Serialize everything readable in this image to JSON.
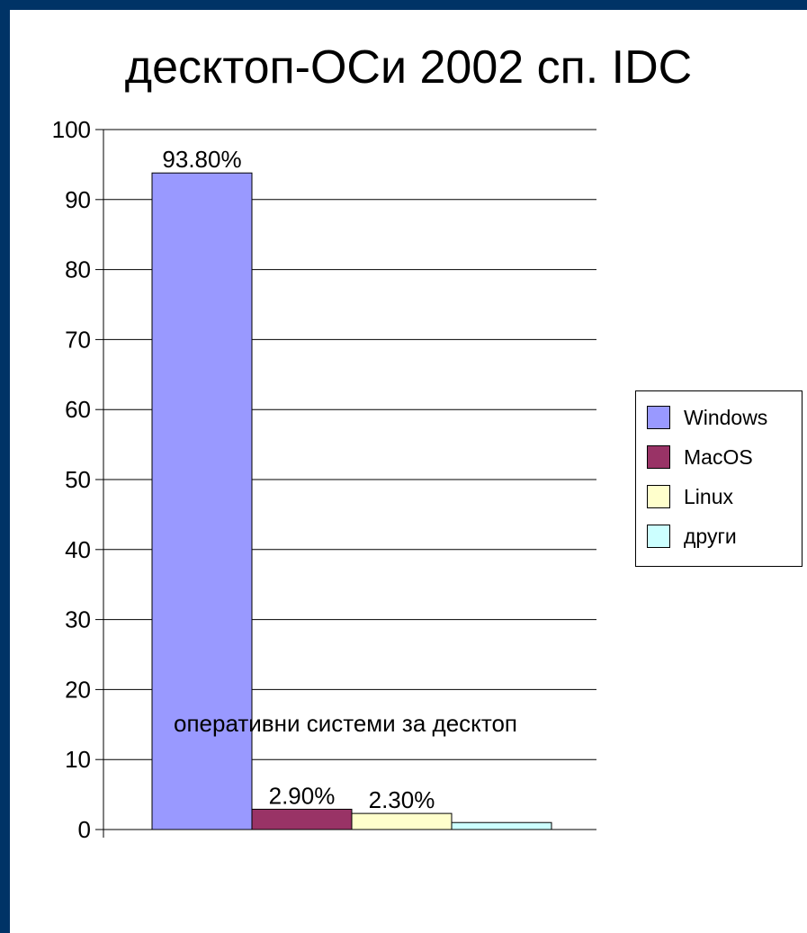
{
  "chart_data": {
    "type": "bar",
    "title": "десктоп-ОСи 2002 сп. IDC",
    "categories": [
      "оперативни системи за десктоп"
    ],
    "series": [
      {
        "name": "Windows",
        "values": [
          93.8
        ],
        "label": "93.80%",
        "color": "#9999ff"
      },
      {
        "name": "MacOS",
        "values": [
          2.9
        ],
        "label": "2.90%",
        "color": "#993366"
      },
      {
        "name": "Linux",
        "values": [
          2.3
        ],
        "label": "2.30%",
        "color": "#ffffcc"
      },
      {
        "name": "други",
        "values": [
          1.0
        ],
        "label": "",
        "color": "#ccffff"
      }
    ],
    "ylim": [
      0,
      100
    ],
    "yticks": [
      "0",
      "10",
      "20",
      "30",
      "40",
      "50",
      "60",
      "70",
      "80",
      "90",
      "100"
    ],
    "grid": true,
    "legend_position": "right"
  }
}
